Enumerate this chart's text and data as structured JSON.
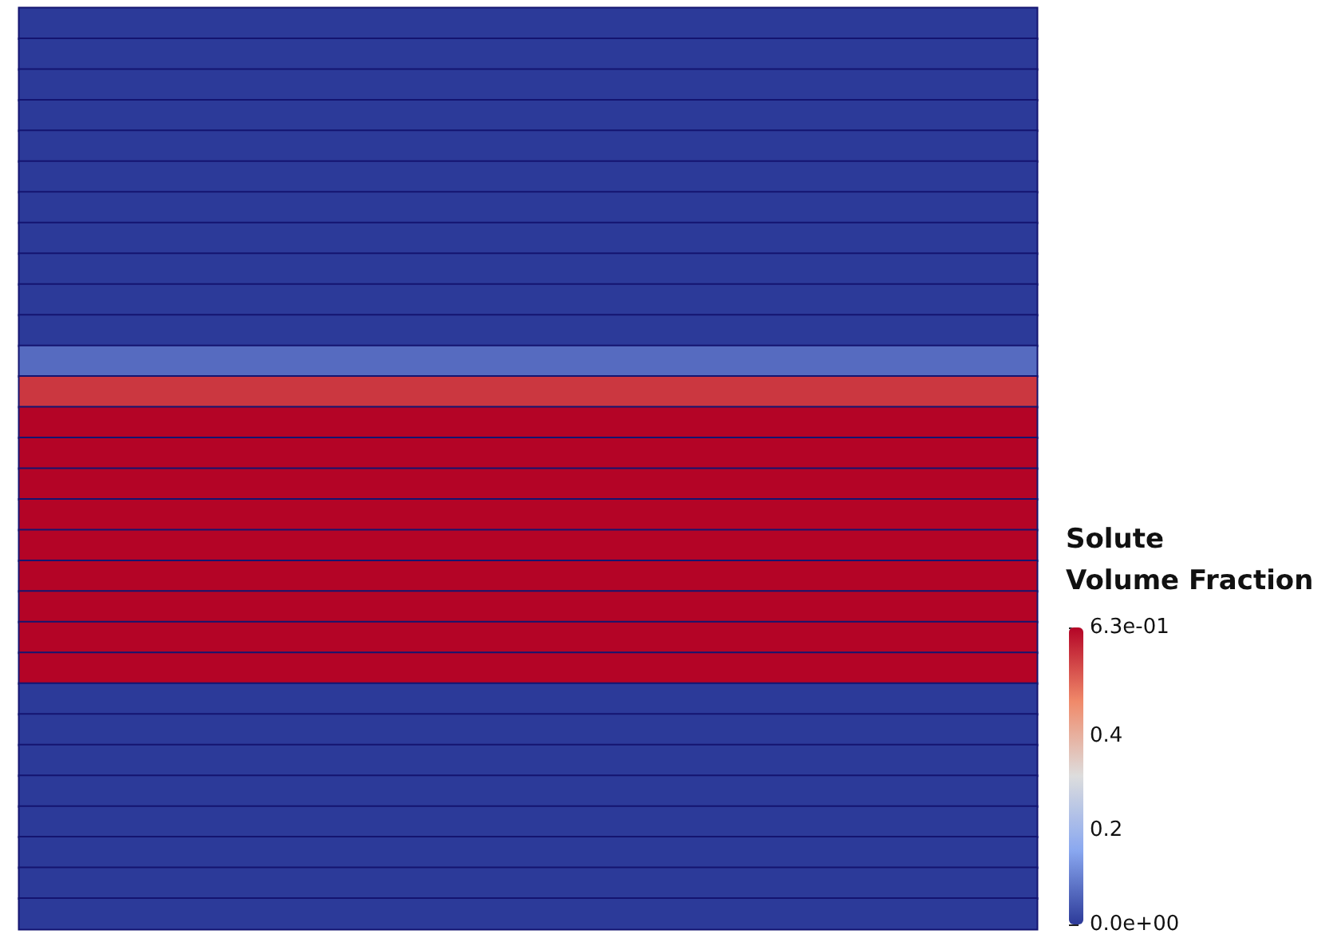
{
  "chart_data": {
    "type": "heatmap",
    "clabel": "Solute Volume Fraction",
    "categories": [
      null
    ],
    "y_categories": [
      null,
      null,
      null,
      null,
      null,
      null,
      null,
      null,
      null,
      null,
      null,
      null,
      null,
      null,
      null,
      null,
      null,
      null,
      null,
      null,
      null,
      null,
      null,
      null,
      null,
      null,
      null,
      null,
      null,
      null
    ],
    "cells": [
      [
        0
      ],
      [
        0
      ],
      [
        0
      ],
      [
        0
      ],
      [
        0
      ],
      [
        0
      ],
      [
        0
      ],
      [
        0
      ],
      [
        0
      ],
      [
        0
      ],
      [
        0
      ],
      [
        0.07
      ],
      [
        0.57
      ],
      [
        0.63
      ],
      [
        0.63
      ],
      [
        0.63
      ],
      [
        0.63
      ],
      [
        0.63
      ],
      [
        0.63
      ],
      [
        0.63
      ],
      [
        0.63
      ],
      [
        0.63
      ],
      [
        0
      ],
      [
        0
      ],
      [
        0
      ],
      [
        0
      ],
      [
        0
      ],
      [
        0
      ],
      [
        0
      ],
      [
        0
      ]
    ],
    "clim": [
      0,
      0.63
    ],
    "cticks": [
      {
        "value": 0,
        "label": "0.0e+00"
      },
      0.2,
      0.4,
      {
        "value": 0.63,
        "label": "6.3e-01"
      }
    ]
  }
}
